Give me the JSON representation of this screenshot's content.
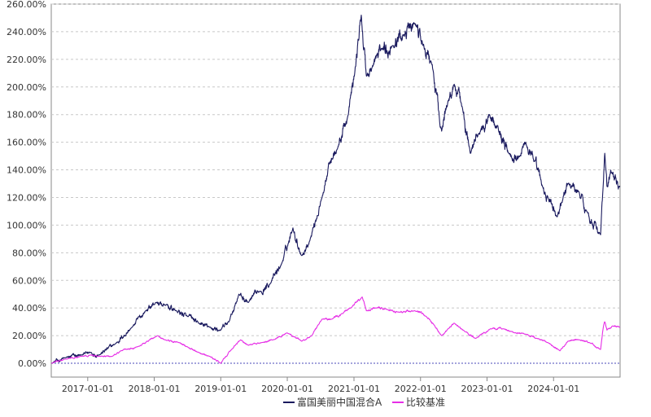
{
  "chart_data": {
    "type": "line",
    "title": "",
    "xlabel": "",
    "ylabel": "",
    "x_range": [
      "2016-06-15",
      "2024-12-31"
    ],
    "ylim": [
      -0.1,
      2.6
    ],
    "y_ticks": [
      0,
      0.2,
      0.4,
      0.6,
      0.8,
      1.0,
      1.2,
      1.4,
      1.6,
      1.8,
      2.0,
      2.2,
      2.4,
      2.6
    ],
    "y_tick_labels": [
      "0.00%",
      "20.00%",
      "40.00%",
      "60.00%",
      "80.00%",
      "100.00%",
      "120.00%",
      "140.00%",
      "160.00%",
      "180.00%",
      "200.00%",
      "220.00%",
      "240.00%",
      "260.00%"
    ],
    "x_ticks": [
      "2017-01-01",
      "2018-01-01",
      "2019-01-01",
      "2020-01-01",
      "2021-01-01",
      "2022-01-01",
      "2023-01-01",
      "2024-01-01"
    ],
    "x_tick_labels": [
      "2017-01-01",
      "2018-01-01",
      "2019-01-01",
      "2020-01-01",
      "2021-01-01",
      "2022-01-01",
      "2023-01-01",
      "2024-01-01"
    ],
    "grid": true,
    "legend_position": "bottom-center",
    "zero_line_color": "#4a4ab8",
    "series": [
      {
        "name": "富国美丽中国混合A",
        "color": "#1a1a5e",
        "points": [
          [
            "2016-06-15",
            0.0
          ],
          [
            "2016-09-01",
            0.04
          ],
          [
            "2016-12-01",
            0.06
          ],
          [
            "2017-01-15",
            0.08
          ],
          [
            "2017-03-01",
            0.06
          ],
          [
            "2017-06-01",
            0.14
          ],
          [
            "2017-09-01",
            0.26
          ],
          [
            "2017-11-15",
            0.38
          ],
          [
            "2018-01-10",
            0.44
          ],
          [
            "2018-03-01",
            0.42
          ],
          [
            "2018-05-01",
            0.38
          ],
          [
            "2018-07-01",
            0.34
          ],
          [
            "2018-09-01",
            0.29
          ],
          [
            "2018-11-01",
            0.26
          ],
          [
            "2019-01-01",
            0.24
          ],
          [
            "2019-02-15",
            0.3
          ],
          [
            "2019-04-10",
            0.5
          ],
          [
            "2019-06-01",
            0.44
          ],
          [
            "2019-08-01",
            0.52
          ],
          [
            "2019-10-01",
            0.58
          ],
          [
            "2019-12-01",
            0.72
          ],
          [
            "2020-02-01",
            0.98
          ],
          [
            "2020-03-20",
            0.78
          ],
          [
            "2020-05-01",
            0.88
          ],
          [
            "2020-07-10",
            1.2
          ],
          [
            "2020-08-15",
            1.45
          ],
          [
            "2020-10-01",
            1.55
          ],
          [
            "2020-12-01",
            1.8
          ],
          [
            "2021-01-05",
            2.1
          ],
          [
            "2021-02-10",
            2.52
          ],
          [
            "2021-03-10",
            2.08
          ],
          [
            "2021-04-10",
            2.14
          ],
          [
            "2021-06-01",
            2.28
          ],
          [
            "2021-08-01",
            2.3
          ],
          [
            "2021-10-01",
            2.38
          ],
          [
            "2021-12-01",
            2.46
          ],
          [
            "2022-01-15",
            2.3
          ],
          [
            "2022-03-01",
            2.18
          ],
          [
            "2022-04-27",
            1.68
          ],
          [
            "2022-06-01",
            1.9
          ],
          [
            "2022-07-05",
            2.02
          ],
          [
            "2022-08-15",
            1.86
          ],
          [
            "2022-10-01",
            1.52
          ],
          [
            "2022-11-15",
            1.66
          ],
          [
            "2023-01-15",
            1.8
          ],
          [
            "2023-03-01",
            1.72
          ],
          [
            "2023-05-01",
            1.52
          ],
          [
            "2023-07-01",
            1.5
          ],
          [
            "2023-08-01",
            1.6
          ],
          [
            "2023-09-15",
            1.46
          ],
          [
            "2023-11-01",
            1.28
          ],
          [
            "2023-12-01",
            1.2
          ],
          [
            "2024-01-20",
            1.06
          ],
          [
            "2024-02-20",
            1.18
          ],
          [
            "2024-03-20",
            1.3
          ],
          [
            "2024-05-20",
            1.24
          ],
          [
            "2024-07-01",
            1.1
          ],
          [
            "2024-09-15",
            0.93
          ],
          [
            "2024-09-30",
            1.3
          ],
          [
            "2024-10-08",
            1.52
          ],
          [
            "2024-10-20",
            1.28
          ],
          [
            "2024-11-15",
            1.38
          ],
          [
            "2024-12-31",
            1.28
          ]
        ]
      },
      {
        "name": "比较基准",
        "color": "#e62ee6",
        "points": [
          [
            "2016-06-15",
            0.0
          ],
          [
            "2016-09-01",
            0.03
          ],
          [
            "2016-12-01",
            0.05
          ],
          [
            "2017-01-15",
            0.06
          ],
          [
            "2017-03-01",
            0.05
          ],
          [
            "2017-05-15",
            0.05
          ],
          [
            "2017-07-01",
            0.09
          ],
          [
            "2017-10-01",
            0.12
          ],
          [
            "2018-01-20",
            0.2
          ],
          [
            "2018-03-01",
            0.17
          ],
          [
            "2018-05-15",
            0.15
          ],
          [
            "2018-07-01",
            0.12
          ],
          [
            "2018-09-01",
            0.08
          ],
          [
            "2018-11-01",
            0.05
          ],
          [
            "2019-01-01",
            0.0
          ],
          [
            "2019-03-01",
            0.1
          ],
          [
            "2019-04-20",
            0.17
          ],
          [
            "2019-06-01",
            0.13
          ],
          [
            "2019-08-15",
            0.15
          ],
          [
            "2019-10-15",
            0.17
          ],
          [
            "2019-12-31",
            0.22
          ],
          [
            "2020-03-20",
            0.16
          ],
          [
            "2020-05-15",
            0.2
          ],
          [
            "2020-07-10",
            0.32
          ],
          [
            "2020-09-01",
            0.32
          ],
          [
            "2020-11-01",
            0.36
          ],
          [
            "2020-12-15",
            0.4
          ],
          [
            "2021-02-15",
            0.48
          ],
          [
            "2021-03-10",
            0.38
          ],
          [
            "2021-05-01",
            0.4
          ],
          [
            "2021-07-01",
            0.39
          ],
          [
            "2021-09-01",
            0.37
          ],
          [
            "2021-12-01",
            0.38
          ],
          [
            "2022-02-01",
            0.34
          ],
          [
            "2022-03-15",
            0.28
          ],
          [
            "2022-04-27",
            0.2
          ],
          [
            "2022-06-01",
            0.25
          ],
          [
            "2022-07-05",
            0.29
          ],
          [
            "2022-09-01",
            0.23
          ],
          [
            "2022-10-31",
            0.18
          ],
          [
            "2023-01-20",
            0.25
          ],
          [
            "2023-04-01",
            0.25
          ],
          [
            "2023-06-01",
            0.22
          ],
          [
            "2023-08-01",
            0.21
          ],
          [
            "2023-10-01",
            0.18
          ],
          [
            "2023-12-01",
            0.15
          ],
          [
            "2024-02-05",
            0.09
          ],
          [
            "2024-03-20",
            0.16
          ],
          [
            "2024-05-20",
            0.17
          ],
          [
            "2024-07-15",
            0.15
          ],
          [
            "2024-09-15",
            0.1
          ],
          [
            "2024-09-30",
            0.26
          ],
          [
            "2024-10-08",
            0.3
          ],
          [
            "2024-10-20",
            0.24
          ],
          [
            "2024-11-20",
            0.27
          ],
          [
            "2024-12-31",
            0.26
          ]
        ]
      }
    ]
  },
  "legend": {
    "items": [
      {
        "label": "富国美丽中国混合A",
        "color": "#1a1a5e"
      },
      {
        "label": "比较基准",
        "color": "#e62ee6"
      }
    ]
  }
}
